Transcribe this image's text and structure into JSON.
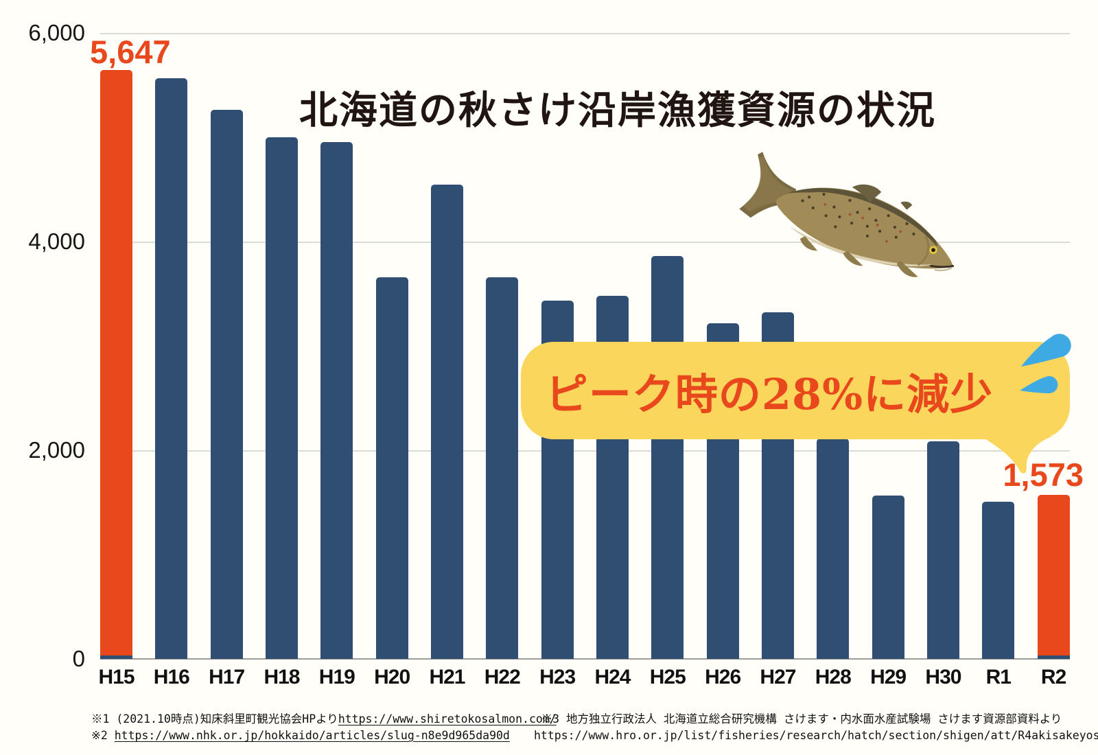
{
  "chart_data": {
    "type": "bar",
    "title": "北海道の秋さけ沿岸漁獲資源の状況",
    "categories": [
      "H15",
      "H16",
      "H17",
      "H18",
      "H19",
      "H20",
      "H21",
      "H22",
      "H23",
      "H24",
      "H25",
      "H26",
      "H27",
      "H28",
      "H29",
      "H30",
      "R1",
      "R2"
    ],
    "values": [
      5647,
      5565,
      5260,
      5000,
      4955,
      3660,
      4545,
      3660,
      3435,
      3480,
      3865,
      3220,
      3325,
      2115,
      1565,
      2085,
      1505,
      1573
    ],
    "xlabel": "",
    "ylabel": "",
    "ylim": [
      0,
      6000
    ],
    "ytick_labels": [
      "6,000",
      "4,000",
      "2,000",
      "0"
    ],
    "ytick_values": [
      6000,
      4000,
      2000,
      0
    ],
    "grid": "horizontal",
    "legend": "none",
    "bar_color": "#2F4E71",
    "highlight_color": "#E8481C",
    "highlight_categories": [
      "H15",
      "R2"
    ],
    "value_labels": {
      "H15": "5,647",
      "R2": "1,573"
    },
    "annotation": {
      "text": "ピーク時の28%に減少",
      "style": "speech-bubble",
      "bubble_color": "#FAD75C",
      "text_color": "#E8481C",
      "drops_color": "#3FA9E3"
    }
  },
  "footnotes": {
    "note1_prefix": "※1 (2021.10時点)知床斜里町観光協会HPより",
    "note1_url": "https://www.shiretokosalmon.com/",
    "note2_prefix": "※2 ",
    "note2_url": "https://www.nhk.or.jp/hokkaido/articles/slug-n8e9d965da90d",
    "note3_text": "※3 地方独立行政法人 北海道立総合研究機構 さけます・内水面水産試験場 さけます資源部資料より",
    "note3_url": "https://www.hro.or.jp/list/fisheries/research/hatch/section/shigen/att/R4akisakeyosoku.pdf"
  }
}
